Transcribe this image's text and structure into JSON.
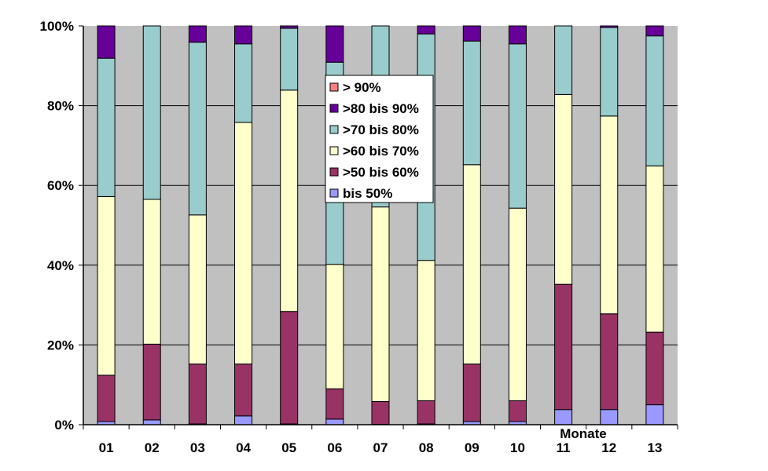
{
  "chart_data": {
    "type": "bar",
    "stacked": "percent",
    "title": "",
    "xlabel": "Monate",
    "ylabel": "",
    "ylim": [
      0,
      100
    ],
    "ytick_labels": [
      "0%",
      "20%",
      "40%",
      "60%",
      "80%",
      "100%"
    ],
    "grid": true,
    "legend_position": "center",
    "categories": [
      "01",
      "02",
      "03",
      "04",
      "05",
      "06",
      "07",
      "08",
      "09",
      "10",
      "11",
      "12",
      "13"
    ],
    "series": [
      {
        "name": "bis 50%",
        "color": "#9999FF",
        "values": [
          0.8,
          1.2,
          0.2,
          2.2,
          0.2,
          1.4,
          0.1,
          0.2,
          0.8,
          0.8,
          3.8,
          3.8,
          5.0
        ]
      },
      {
        "name": ">50 bis 60%",
        "color": "#993366",
        "values": [
          11.6,
          19.0,
          15.0,
          13.0,
          28.2,
          7.6,
          5.7,
          5.8,
          14.4,
          5.2,
          31.4,
          24.0,
          18.2
        ]
      },
      {
        "name": ">60 bis 70%",
        "color": "#FFFFCC",
        "values": [
          44.8,
          36.3,
          37.4,
          60.6,
          55.5,
          31.2,
          48.8,
          35.2,
          50.0,
          48.3,
          47.6,
          49.6,
          41.7
        ]
      },
      {
        "name": ">70 bis 80%",
        "color": "#99CCCC",
        "values": [
          34.7,
          43.5,
          43.3,
          19.7,
          15.5,
          50.7,
          45.4,
          56.8,
          31.0,
          41.2,
          17.2,
          22.2,
          32.6
        ]
      },
      {
        "name": ">80 bis 90%",
        "color": "#660099",
        "values": [
          8.1,
          0.0,
          4.1,
          4.5,
          0.6,
          9.1,
          0.0,
          2.0,
          3.8,
          4.5,
          0.0,
          0.4,
          2.5
        ]
      },
      {
        "name": "> 90%",
        "color": "#FF8080",
        "values": [
          0,
          0,
          0,
          0,
          0,
          0,
          0,
          0,
          0,
          0,
          0,
          0,
          0
        ]
      }
    ],
    "legend_order": [
      "> 90%",
      ">80 bis 90%",
      ">70 bis 80%",
      ">60 bis 70%",
      ">50 bis 60%",
      "bis 50%"
    ],
    "plot_background": "#C0C0C0"
  }
}
